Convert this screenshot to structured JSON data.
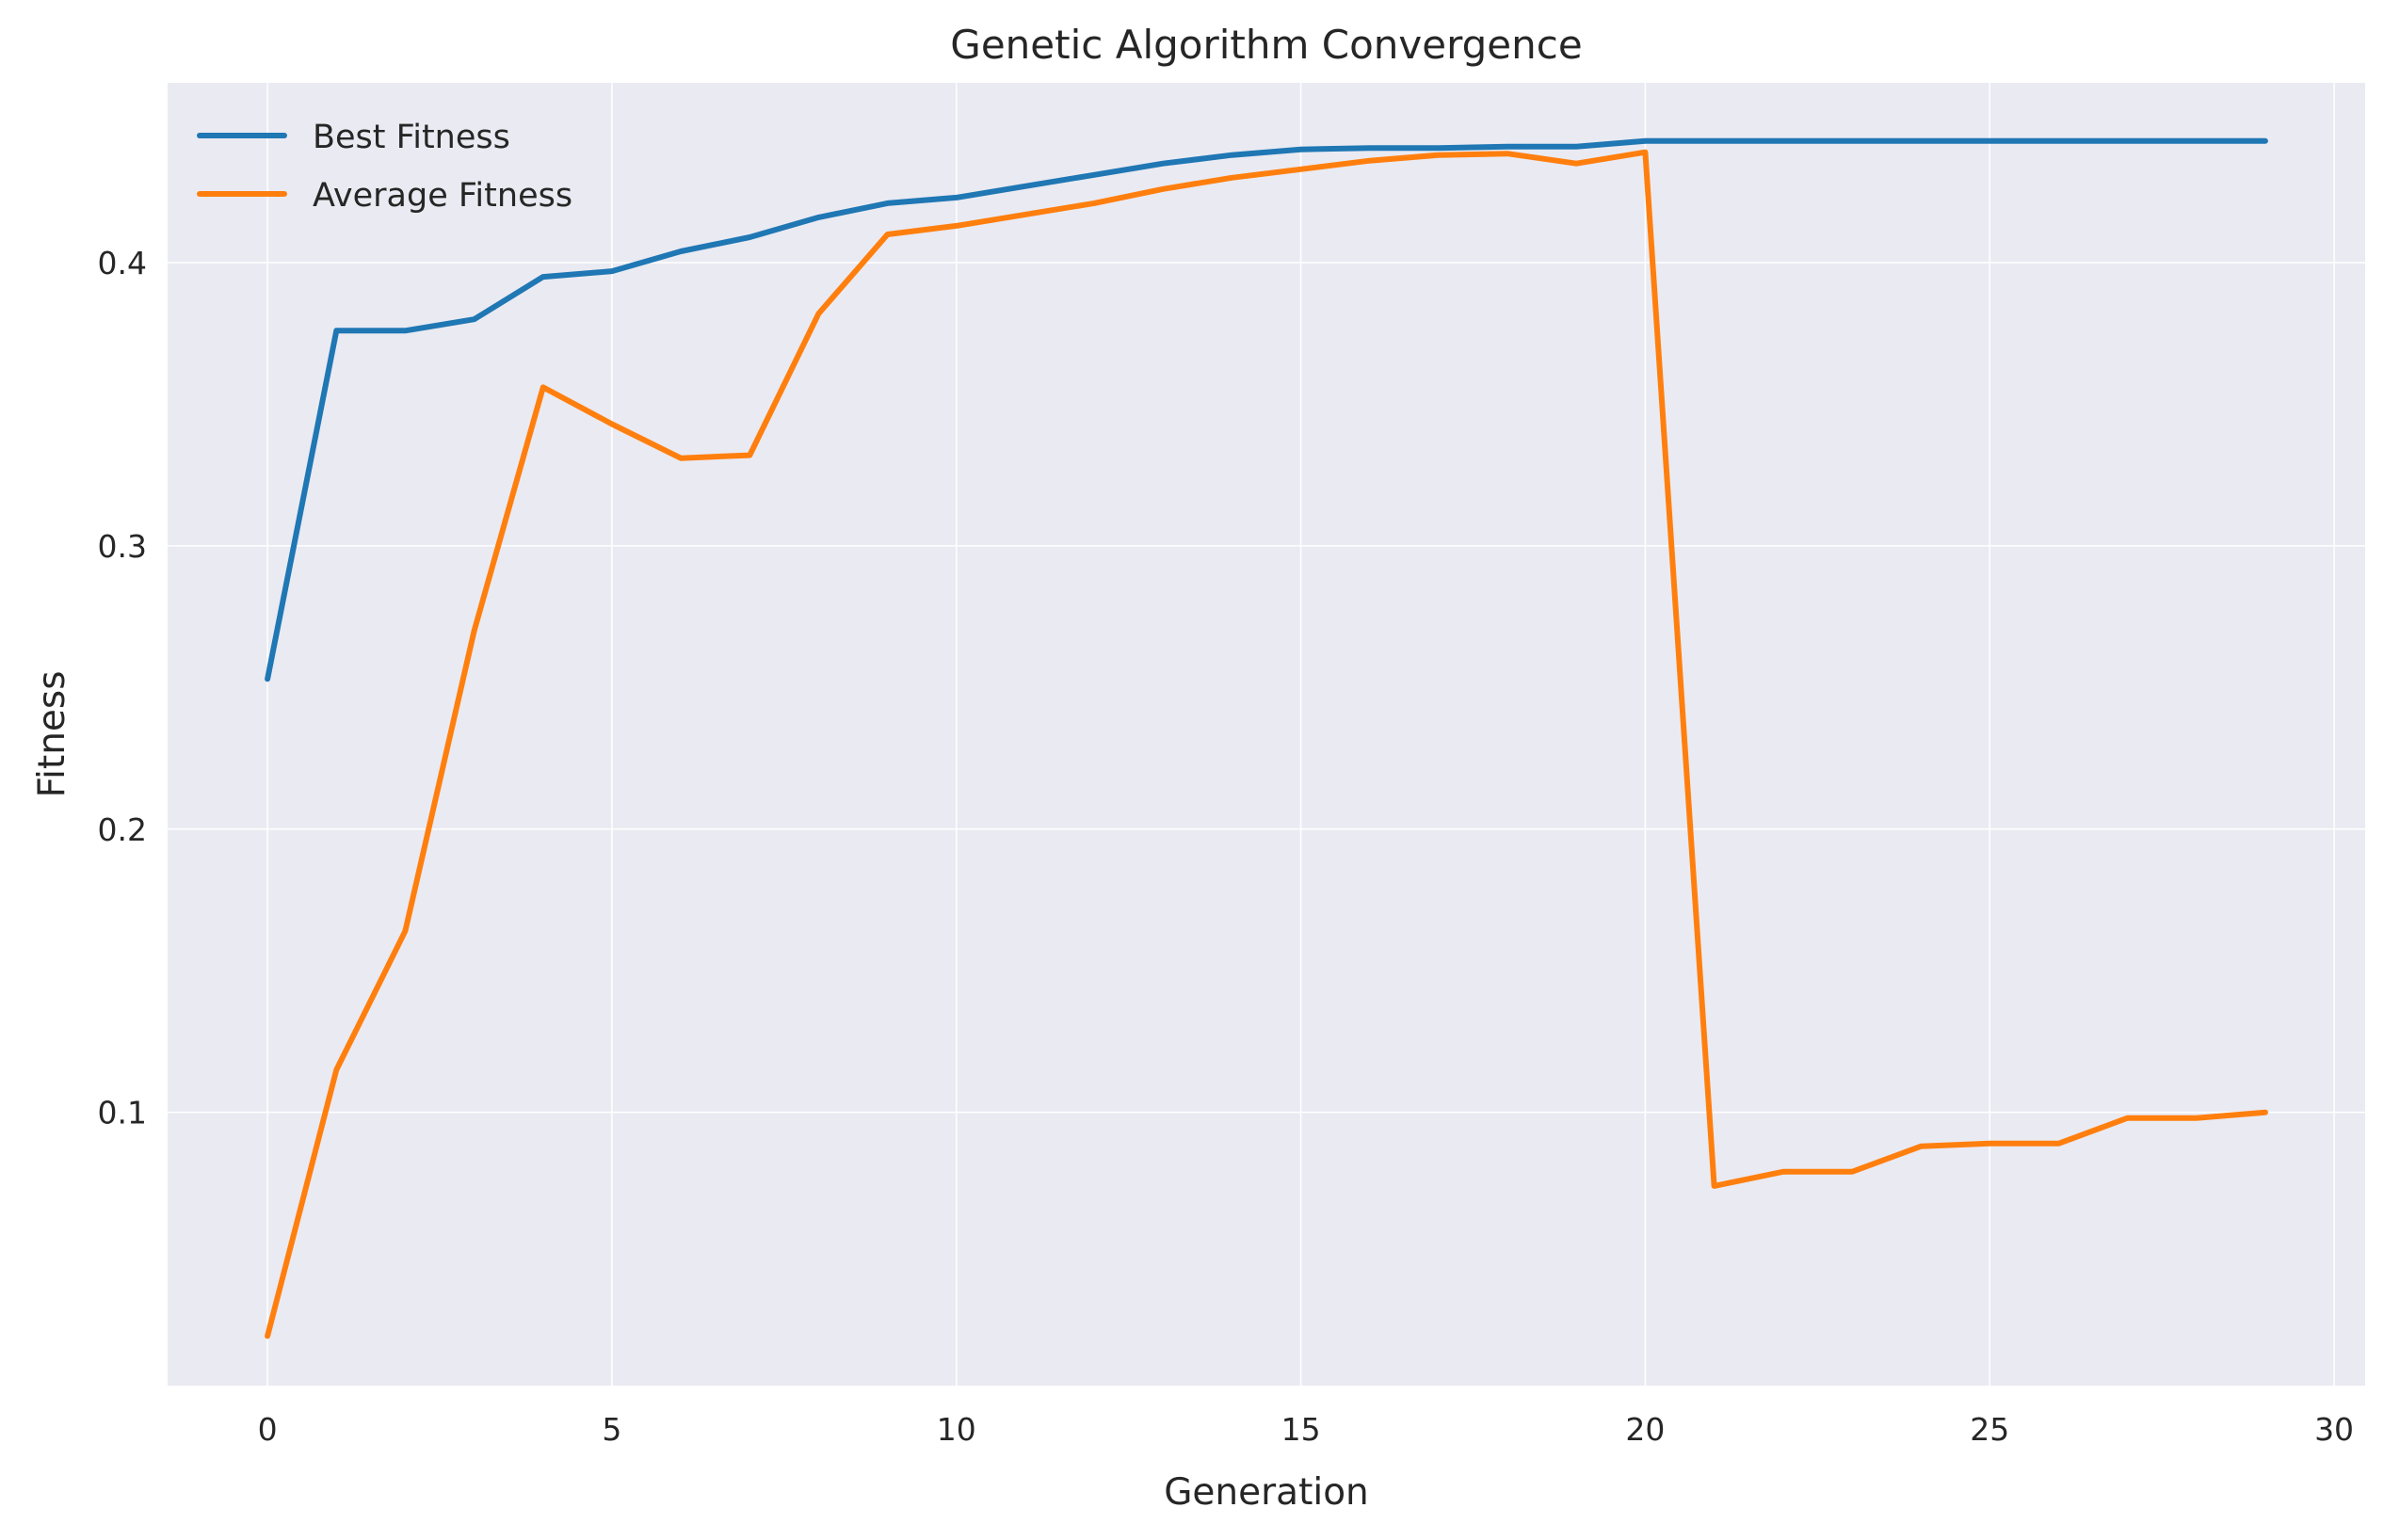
{
  "chart_data": {
    "type": "line",
    "title": "Genetic Algorithm Convergence",
    "xlabel": "Generation",
    "ylabel": "Fitness",
    "xlim": [
      -1.45,
      30.45
    ],
    "ylim": [
      0.0035,
      0.4635
    ],
    "xticks": [
      0,
      5,
      10,
      15,
      20,
      25,
      30
    ],
    "yticks": [
      0.1,
      0.2,
      0.3,
      0.4
    ],
    "grid": true,
    "legend_position": "top-left",
    "x": [
      0,
      1,
      2,
      3,
      4,
      5,
      6,
      7,
      8,
      9,
      10,
      11,
      12,
      13,
      14,
      15,
      16,
      17,
      18,
      19,
      20,
      21,
      22,
      23,
      24,
      25,
      26,
      27,
      28,
      29
    ],
    "series": [
      {
        "name": "Best Fitness",
        "color": "#1f77b4",
        "values": [
          0.253,
          0.376,
          0.376,
          0.38,
          0.395,
          0.397,
          0.404,
          0.409,
          0.416,
          0.421,
          0.423,
          0.427,
          0.431,
          0.435,
          0.438,
          0.44,
          0.4405,
          0.4405,
          0.441,
          0.441,
          0.443,
          0.443,
          0.443,
          0.443,
          0.443,
          0.443,
          0.443,
          0.443,
          0.443,
          0.443
        ]
      },
      {
        "name": "Average Fitness",
        "color": "#ff7f0e",
        "values": [
          0.021,
          0.115,
          0.164,
          0.27,
          0.356,
          0.343,
          0.331,
          0.332,
          0.382,
          0.41,
          0.413,
          0.417,
          0.421,
          0.426,
          0.43,
          0.433,
          0.436,
          0.438,
          0.4385,
          0.435,
          0.439,
          0.074,
          0.079,
          0.079,
          0.088,
          0.089,
          0.089,
          0.098,
          0.098,
          0.1
        ]
      }
    ]
  }
}
